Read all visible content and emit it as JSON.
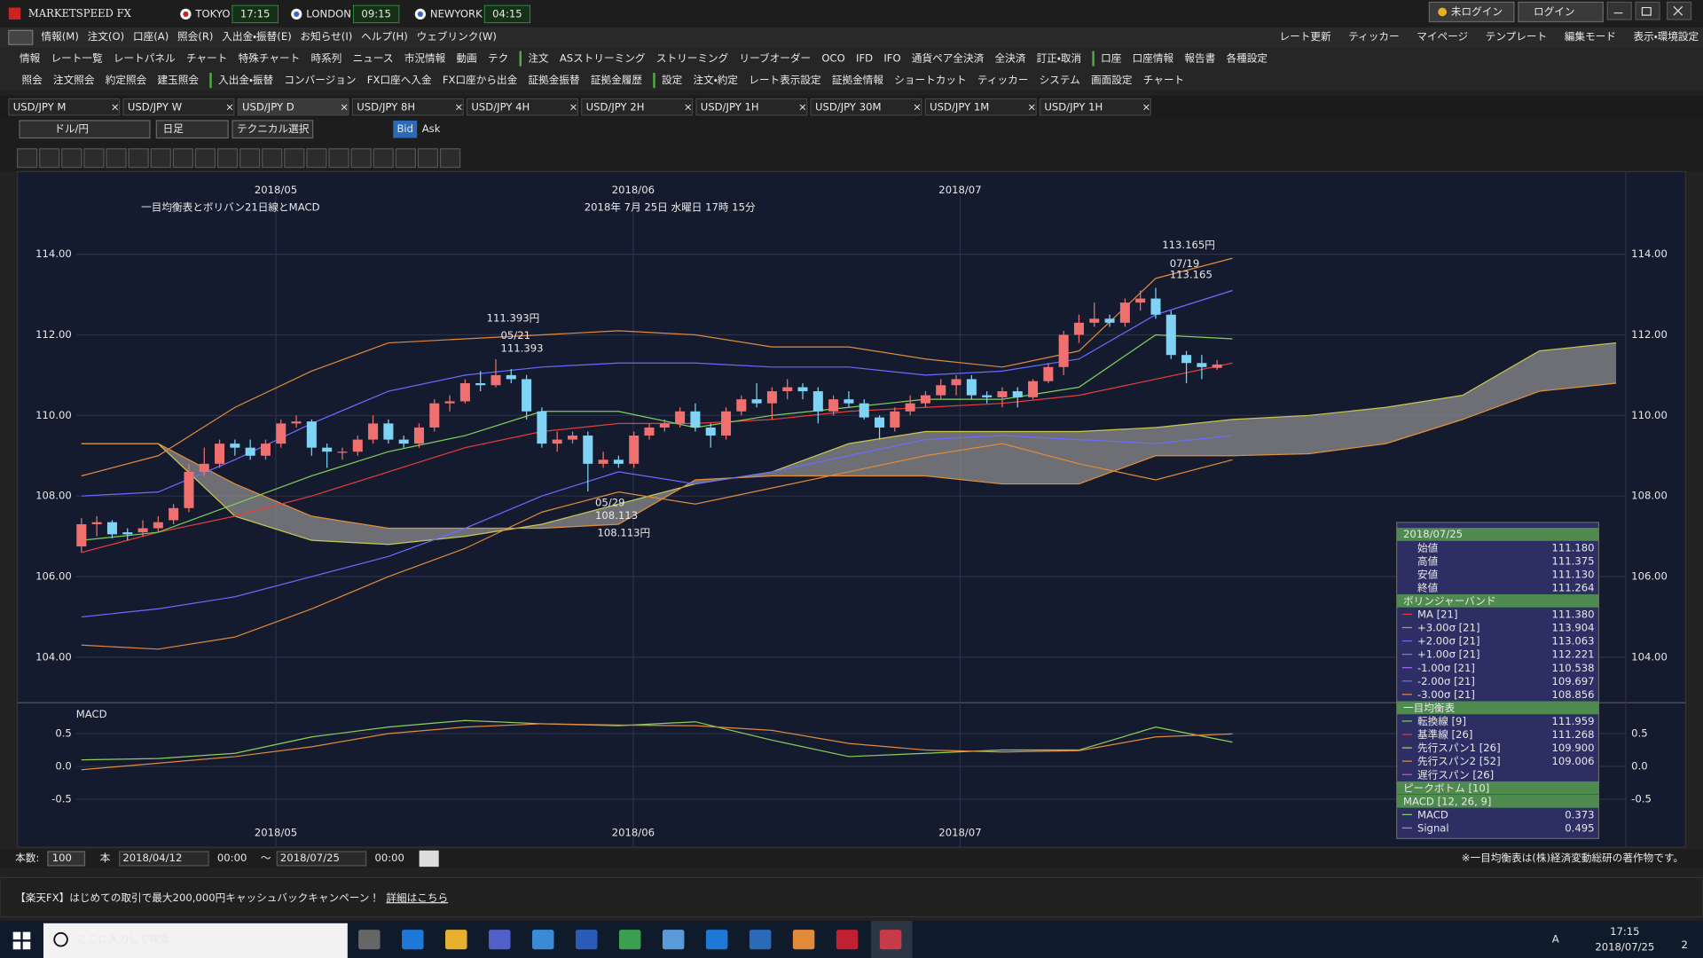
{
  "title_bar": {
    "app": "MARKETSPEED FX",
    "clocks": [
      {
        "city": "TOKYO",
        "time": "17:15"
      },
      {
        "city": "LONDON",
        "time": "09:15"
      },
      {
        "city": "NEWYORK",
        "time": "04:15"
      }
    ],
    "buttons": [
      "未ログイン",
      "ログイン"
    ]
  },
  "menu": [
    "情報(M)",
    "注文(O)",
    "口座(A)",
    "照会(R)",
    "入出金・振替(E)",
    "お知らせ(I)",
    "ヘルプ(H)",
    "ウェブリンク(W)"
  ],
  "right_menu": [
    "レート更新",
    "ティッカー",
    "マイページ",
    "テンプレート",
    "編集モード",
    "表示・環境設定"
  ],
  "toolbar1": [
    "情報",
    "レート一覧",
    "レートパネル",
    "チャート",
    "特殊チャート",
    "時系列",
    "ニュース",
    "市況情報",
    "動画",
    "テク",
    "注文",
    "ASストリーミング",
    "ストリーミング",
    "リーブオーダー",
    "OCO",
    "IFD",
    "IFO",
    "通貨ペア全決済",
    "全決済",
    "訂正・取消",
    "口座",
    "口座情報",
    "報告書",
    "各種設定"
  ],
  "toolbar2": [
    "照会",
    "注文照会",
    "約定照会",
    "建玉照会",
    "入出金・振替",
    "コンバージョン",
    "FX口座へ入金",
    "FX口座から出金",
    "証拠金振替",
    "証拠金履歴",
    "設定",
    "注文・約定",
    "レート表示設定",
    "証拠金情報",
    "ショートカット",
    "ティッカー",
    "システム",
    "画面設定",
    "チャート"
  ],
  "tabs": [
    "USD/JPY M",
    "USD/JPY W",
    "USD/JPY D",
    "USD/JPY 8H",
    "USD/JPY 4H",
    "USD/JPY 2H",
    "USD/JPY 1H",
    "USD/JPY 30M",
    "USD/JPY 1M",
    "USD/JPY 1H"
  ],
  "active_tab": 2,
  "chart_controls": {
    "pair": "ドル/円",
    "period": "日足",
    "technical": "テクニカル選択",
    "bid": "Bid",
    "ask": "Ask"
  },
  "chart": {
    "heading": "一目均衡表とボリバン21日線とMACD",
    "heading_date": "2018年 7月 25日 水曜日 17時 15分",
    "x_labels": [
      "2018/05",
      "2018/06",
      "2018/07"
    ],
    "ylim": [
      102.87,
      116.05
    ],
    "yticks": [
      {
        "value": 104,
        "label": "104.00"
      },
      {
        "value": 106,
        "label": "106.00"
      },
      {
        "value": 108,
        "label": "108.00"
      },
      {
        "value": 110,
        "label": "110.00"
      },
      {
        "value": 112,
        "label": "112.00"
      },
      {
        "value": 114,
        "label": "114.00"
      }
    ],
    "up_color": "#f07070",
    "down_color": "#7fd4f5",
    "candles": [
      [
        106.75,
        107.45,
        106.6,
        107.3
      ],
      [
        107.3,
        107.5,
        107.0,
        107.35
      ],
      [
        107.35,
        107.4,
        106.95,
        107.05
      ],
      [
        107.1,
        107.2,
        106.9,
        107.05
      ],
      [
        107.1,
        107.4,
        107.0,
        107.2
      ],
      [
        107.2,
        107.5,
        107.1,
        107.35
      ],
      [
        107.4,
        107.8,
        107.3,
        107.7
      ],
      [
        107.7,
        108.8,
        107.6,
        108.6
      ],
      [
        108.6,
        109.2,
        108.5,
        108.8
      ],
      [
        108.8,
        109.4,
        108.7,
        109.3
      ],
      [
        109.3,
        109.4,
        109.0,
        109.2
      ],
      [
        109.2,
        109.4,
        108.9,
        109.0
      ],
      [
        109.0,
        109.4,
        108.9,
        109.3
      ],
      [
        109.3,
        109.9,
        109.2,
        109.8
      ],
      [
        109.8,
        110.0,
        109.7,
        109.85
      ],
      [
        109.85,
        109.9,
        109.0,
        109.2
      ],
      [
        109.2,
        109.3,
        108.7,
        109.1
      ],
      [
        109.1,
        109.2,
        108.9,
        109.1
      ],
      [
        109.1,
        109.5,
        109.0,
        109.4
      ],
      [
        109.4,
        110.0,
        109.3,
        109.8
      ],
      [
        109.8,
        109.9,
        109.3,
        109.4
      ],
      [
        109.4,
        109.5,
        109.2,
        109.3
      ],
      [
        109.3,
        109.8,
        109.2,
        109.7
      ],
      [
        109.7,
        110.4,
        109.6,
        110.3
      ],
      [
        110.3,
        110.5,
        110.1,
        110.35
      ],
      [
        110.35,
        110.9,
        110.3,
        110.8
      ],
      [
        110.8,
        111.1,
        110.6,
        110.75
      ],
      [
        110.75,
        111.393,
        110.7,
        111.0
      ],
      [
        111.0,
        111.15,
        110.8,
        110.9
      ],
      [
        110.9,
        111.0,
        109.9,
        110.1
      ],
      [
        110.1,
        110.2,
        109.2,
        109.3
      ],
      [
        109.3,
        109.6,
        109.1,
        109.4
      ],
      [
        109.4,
        109.6,
        109.3,
        109.5
      ],
      [
        109.5,
        109.6,
        108.113,
        108.8
      ],
      [
        108.8,
        109.1,
        108.7,
        108.9
      ],
      [
        108.9,
        109.0,
        108.7,
        108.8
      ],
      [
        108.8,
        109.6,
        108.7,
        109.5
      ],
      [
        109.5,
        109.8,
        109.4,
        109.7
      ],
      [
        109.7,
        109.9,
        109.6,
        109.8
      ],
      [
        109.8,
        110.2,
        109.7,
        110.1
      ],
      [
        110.1,
        110.3,
        109.6,
        109.7
      ],
      [
        109.7,
        109.8,
        109.2,
        109.5
      ],
      [
        109.5,
        110.2,
        109.4,
        110.1
      ],
      [
        110.1,
        110.5,
        110.0,
        110.4
      ],
      [
        110.4,
        110.8,
        110.2,
        110.3
      ],
      [
        110.3,
        110.7,
        109.9,
        110.6
      ],
      [
        110.6,
        110.9,
        110.4,
        110.7
      ],
      [
        110.7,
        110.8,
        110.4,
        110.6
      ],
      [
        110.6,
        110.7,
        109.8,
        110.1
      ],
      [
        110.1,
        110.5,
        110.0,
        110.4
      ],
      [
        110.4,
        110.6,
        110.2,
        110.3
      ],
      [
        110.3,
        110.4,
        109.9,
        109.95
      ],
      [
        109.95,
        110.0,
        109.4,
        109.7
      ],
      [
        109.7,
        110.2,
        109.6,
        110.1
      ],
      [
        110.1,
        110.5,
        110.0,
        110.3
      ],
      [
        110.3,
        110.6,
        110.2,
        110.5
      ],
      [
        110.5,
        110.9,
        110.4,
        110.75
      ],
      [
        110.75,
        111.0,
        110.5,
        110.9
      ],
      [
        110.9,
        111.0,
        110.4,
        110.5
      ],
      [
        110.5,
        110.6,
        110.3,
        110.45
      ],
      [
        110.45,
        110.7,
        110.2,
        110.6
      ],
      [
        110.6,
        110.7,
        110.2,
        110.45
      ],
      [
        110.45,
        110.9,
        110.4,
        110.85
      ],
      [
        110.85,
        111.3,
        110.8,
        111.2
      ],
      [
        111.2,
        112.1,
        111.0,
        112.0
      ],
      [
        112.0,
        112.5,
        111.8,
        112.3
      ],
      [
        112.3,
        112.8,
        112.2,
        112.4
      ],
      [
        112.4,
        112.5,
        112.2,
        112.3
      ],
      [
        112.3,
        112.9,
        112.2,
        112.8
      ],
      [
        112.8,
        113.1,
        112.6,
        112.9
      ],
      [
        112.9,
        113.165,
        112.4,
        112.5
      ],
      [
        112.5,
        112.6,
        111.4,
        111.5
      ],
      [
        111.5,
        111.6,
        110.8,
        111.3
      ],
      [
        111.3,
        111.5,
        110.9,
        111.2
      ],
      [
        111.18,
        111.375,
        111.13,
        111.264
      ]
    ],
    "lines": [
      {
        "color": "#e83c3c",
        "values": [
          106.6,
          107.1,
          107.5,
          108.0,
          108.6,
          109.2,
          109.6,
          109.8,
          109.8,
          109.9,
          110.1,
          110.2,
          110.3,
          110.5,
          110.9,
          111.3
        ]
      },
      {
        "color": "#6a6cff",
        "values": [
          108.0,
          108.1,
          108.9,
          109.8,
          110.6,
          111.0,
          111.2,
          111.3,
          111.3,
          111.2,
          111.2,
          111.0,
          111.1,
          111.4,
          112.5,
          113.1
        ]
      },
      {
        "color": "#6a6cff",
        "values": [
          105.0,
          105.2,
          105.5,
          106.0,
          106.5,
          107.2,
          108.0,
          108.6,
          108.3,
          108.6,
          109.0,
          109.4,
          109.5,
          109.4,
          109.3,
          109.5
        ]
      },
      {
        "color": "#e08a3a",
        "values": [
          108.5,
          109.0,
          110.2,
          111.1,
          111.8,
          111.9,
          112.0,
          112.1,
          112.0,
          111.7,
          111.7,
          111.4,
          111.2,
          111.6,
          113.4,
          113.9
        ]
      },
      {
        "color": "#e08a3a",
        "values": [
          104.3,
          104.2,
          104.5,
          105.2,
          106.0,
          106.7,
          107.6,
          108.1,
          107.8,
          108.2,
          108.6,
          109.0,
          109.3,
          108.8,
          108.4,
          108.9
        ]
      },
      {
        "color": "#7ed35a",
        "values": [
          106.9,
          107.1,
          107.8,
          108.5,
          109.1,
          109.5,
          110.1,
          110.1,
          109.7,
          110.0,
          110.2,
          110.4,
          110.4,
          110.7,
          112.0,
          111.9
        ]
      }
    ],
    "cloud": {
      "span1_color": "#c8c850",
      "span2_color": "#e0903a",
      "fill": "#8c8c8c",
      "span1": [
        109.3,
        109.3,
        107.5,
        106.9,
        106.8,
        107.0,
        107.3,
        107.8,
        108.3,
        108.6,
        109.3,
        109.6,
        109.6,
        109.6,
        109.7,
        109.9,
        110.0,
        110.2,
        110.5,
        111.6,
        111.8
      ],
      "span2": [
        109.3,
        109.3,
        108.3,
        107.5,
        107.2,
        107.2,
        107.2,
        107.3,
        108.4,
        108.5,
        108.5,
        108.5,
        108.3,
        108.3,
        109.0,
        109.0,
        109.05,
        109.3,
        109.9,
        110.6,
        110.8
      ]
    },
    "annotations": [
      {
        "big": "113.165円",
        "date": "07/19",
        "price": "113.165"
      },
      {
        "big": "111.393円",
        "date": "05/21",
        "price": "111.393"
      },
      {
        "big": "108.113円",
        "date": "05/29",
        "price": "108.113"
      }
    ],
    "macd": {
      "label": "MACD",
      "ylim": [
        -1.23,
        0.97
      ],
      "yticks": [
        0.5,
        {
          "value": 0,
          "label": "0.0"
        },
        -0.5
      ],
      "macd_color": "#8cd05a",
      "signal_color": "#e08a3a",
      "macd_values": [
        0.1,
        0.12,
        0.2,
        0.45,
        0.6,
        0.7,
        0.65,
        0.62,
        0.68,
        0.4,
        0.15,
        0.2,
        0.25,
        0.25,
        0.6,
        0.37
      ],
      "signal_values": [
        -0.05,
        0.05,
        0.15,
        0.3,
        0.5,
        0.6,
        0.65,
        0.63,
        0.62,
        0.55,
        0.35,
        0.25,
        0.22,
        0.24,
        0.45,
        0.495
      ]
    }
  },
  "info_panel": {
    "date": "2018/07/25",
    "sections": [
      {
        "rows": [
          {
            "label": "始値",
            "value": "111.180"
          },
          {
            "label": "高値",
            "value": "111.375"
          },
          {
            "label": "安値",
            "value": "111.130"
          },
          {
            "label": "終値",
            "value": "111.264"
          }
        ]
      },
      {
        "title": "ボリンジャーバンド",
        "rows": [
          {
            "label": "MA [21]",
            "value": "111.380",
            "color": "#e83c3c"
          },
          {
            "label": "+3.00σ [21]",
            "value": "113.904",
            "color": "#e08a3a"
          },
          {
            "label": "+2.00σ [21]",
            "value": "113.063",
            "color": "#6a6cff"
          },
          {
            "label": "+1.00σ [21]",
            "value": "112.221",
            "color": "#b060ff"
          },
          {
            "label": "-1.00σ [21]",
            "value": "110.538",
            "color": "#b060ff"
          },
          {
            "label": "-2.00σ [21]",
            "value": "109.697",
            "color": "#6a6cff"
          },
          {
            "label": "-3.00σ [21]",
            "value": "108.856",
            "color": "#e08a3a"
          }
        ]
      },
      {
        "title": "一目均衡表",
        "rows": [
          {
            "label": "転換線 [9]",
            "value": "111.959",
            "color": "#7ed35a"
          },
          {
            "label": "基準線 [26]",
            "value": "111.268",
            "color": "#e83c3c"
          },
          {
            "label": "先行スパン1 [26]",
            "value": "109.900",
            "color": "#c8c850"
          },
          {
            "label": "先行スパン2 [52]",
            "value": "109.006",
            "color": "#e0903a"
          },
          {
            "label": "遅行スパン [26]",
            "color": "#d050d0"
          }
        ]
      },
      {
        "title": "ピークボトム [10]",
        "rows": []
      },
      {
        "title": "MACD [12, 26, 9]",
        "rows": [
          {
            "label": "MACD",
            "value": "0.373",
            "color": "#8cd05a"
          },
          {
            "label": "Signal",
            "value": "0.495",
            "color": "#e08a3a"
          }
        ]
      }
    ]
  },
  "footer": {
    "count_label": "本数:",
    "count": "100",
    "unit": "本",
    "from_date": "2018/04/12",
    "from_time": "00:00",
    "sep": "～",
    "to_date": "2018/07/25",
    "to_time": "00:00",
    "note": "※一目均衡表は(株)経済変動総研の著作物です。"
  },
  "banner": {
    "text": "【楽天FX】はじめての取引で最大200,000円キャッシュバックキャンペーン！",
    "link": "詳細はこちら"
  },
  "taskbar": {
    "search": "ここに入力して検索",
    "ime": "A",
    "time": "17:15",
    "date": "2018/07/25",
    "notifications": "2"
  }
}
